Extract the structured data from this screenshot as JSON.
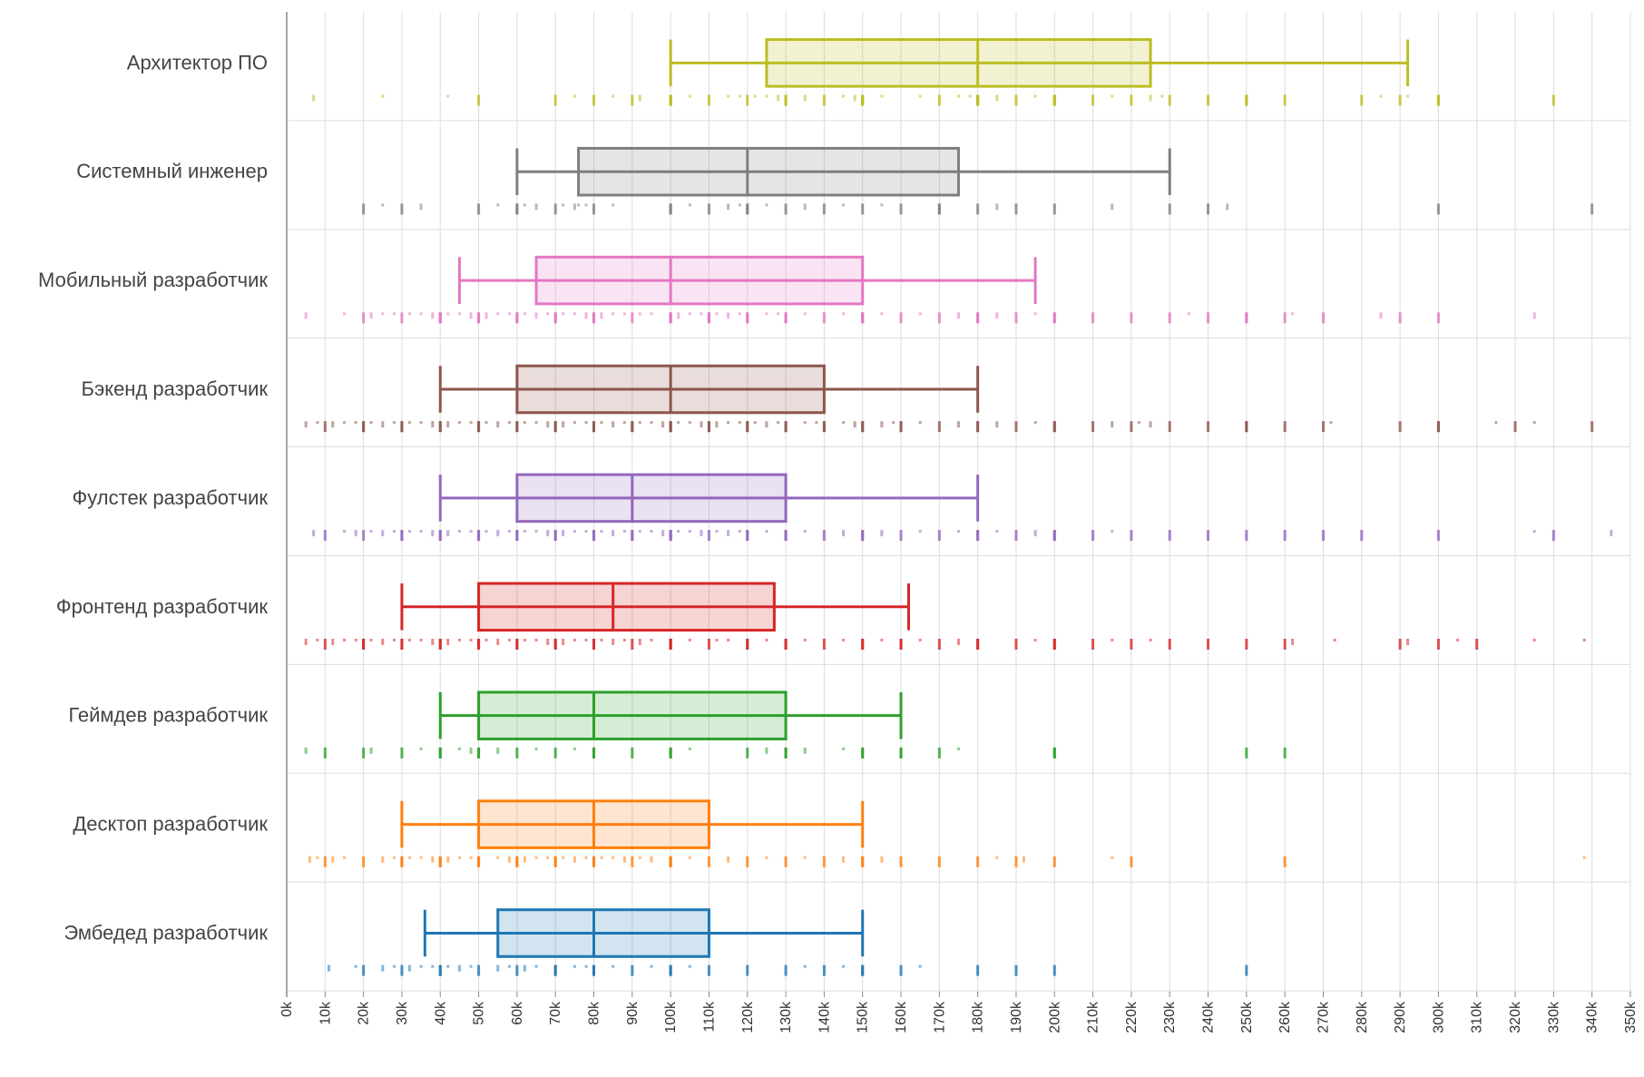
{
  "chart_data": {
    "type": "box",
    "orientation": "horizontal",
    "title": "",
    "xlabel": "",
    "ylabel": "",
    "xlim": [
      0,
      350
    ],
    "x_unit_suffix": "k",
    "x_ticks": [
      "0k",
      "10k",
      "20k",
      "30k",
      "40k",
      "50k",
      "60k",
      "70k",
      "80k",
      "90k",
      "100k",
      "110k",
      "120k",
      "130k",
      "140k",
      "150k",
      "160k",
      "170k",
      "180k",
      "190k",
      "200k",
      "210k",
      "220k",
      "230k",
      "240k",
      "250k",
      "260k",
      "270k",
      "280k",
      "290k",
      "300k",
      "310k",
      "320k",
      "330k",
      "340k",
      "350k"
    ],
    "grid": true,
    "series": [
      {
        "name": "Архитектор ПО",
        "color": "#bcbd22",
        "whisker_low": 100,
        "q1": 125,
        "median": 180,
        "q3": 225,
        "whisker_high": 292,
        "points": [
          7,
          25,
          42,
          50,
          70,
          75,
          80,
          85,
          90,
          92,
          100,
          100,
          100,
          100,
          105,
          110,
          115,
          118,
          120,
          122,
          125,
          128,
          130,
          130,
          135,
          140,
          145,
          148,
          150,
          150,
          150,
          155,
          165,
          170,
          175,
          178,
          180,
          180,
          180,
          185,
          190,
          195,
          200,
          200,
          200,
          210,
          215,
          220,
          225,
          228,
          230,
          240,
          250,
          250,
          260,
          280,
          285,
          290,
          292,
          300,
          300,
          330
        ]
      },
      {
        "name": "Системный инженер",
        "color": "#7f7f7f",
        "whisker_low": 60,
        "q1": 76,
        "median": 120,
        "q3": 175,
        "whisker_high": 230,
        "points": [
          20,
          25,
          30,
          35,
          50,
          55,
          60,
          60,
          62,
          65,
          70,
          72,
          75,
          76,
          78,
          80,
          85,
          100,
          100,
          105,
          110,
          115,
          118,
          120,
          120,
          125,
          130,
          135,
          140,
          145,
          150,
          155,
          160,
          170,
          170,
          180,
          185,
          190,
          200,
          215,
          230,
          240,
          245,
          300,
          340
        ]
      },
      {
        "name": "Мобильный разработчик",
        "color": "#e377c2",
        "whisker_low": 45,
        "q1": 65,
        "median": 100,
        "q3": 150,
        "whisker_high": 195,
        "points": [
          5,
          15,
          20,
          22,
          25,
          28,
          30,
          32,
          35,
          38,
          40,
          40,
          40,
          42,
          45,
          48,
          50,
          50,
          52,
          55,
          58,
          60,
          60,
          62,
          65,
          68,
          70,
          70,
          72,
          75,
          78,
          80,
          80,
          82,
          85,
          88,
          90,
          92,
          95,
          100,
          100,
          100,
          102,
          105,
          108,
          110,
          110,
          112,
          115,
          118,
          120,
          120,
          125,
          128,
          130,
          130,
          135,
          140,
          145,
          150,
          150,
          150,
          155,
          160,
          165,
          170,
          175,
          180,
          180,
          185,
          190,
          195,
          200,
          200,
          210,
          220,
          230,
          235,
          240,
          250,
          250,
          260,
          262,
          270,
          285,
          290,
          300,
          325
        ]
      },
      {
        "name": "Бэкенд разработчик",
        "color": "#8c564b",
        "whisker_low": 40,
        "q1": 60,
        "median": 100,
        "q3": 140,
        "whisker_high": 180,
        "points": [
          5,
          8,
          10,
          12,
          15,
          18,
          20,
          20,
          22,
          25,
          28,
          30,
          30,
          32,
          35,
          38,
          40,
          40,
          42,
          45,
          48,
          50,
          50,
          52,
          55,
          58,
          60,
          60,
          62,
          65,
          68,
          70,
          70,
          72,
          75,
          78,
          80,
          80,
          82,
          85,
          88,
          90,
          90,
          92,
          95,
          98,
          100,
          100,
          100,
          102,
          105,
          108,
          110,
          110,
          112,
          115,
          118,
          120,
          120,
          122,
          125,
          128,
          130,
          130,
          135,
          138,
          140,
          140,
          145,
          148,
          150,
          150,
          155,
          158,
          160,
          160,
          165,
          170,
          175,
          180,
          180,
          185,
          190,
          195,
          200,
          200,
          210,
          215,
          220,
          222,
          225,
          230,
          240,
          250,
          250,
          260,
          270,
          272,
          290,
          300,
          300,
          315,
          320,
          325,
          340
        ]
      },
      {
        "name": "Фулстек разработчик",
        "color": "#9467bd",
        "whisker_low": 40,
        "q1": 60,
        "median": 90,
        "q3": 130,
        "whisker_high": 180,
        "points": [
          7,
          10,
          15,
          18,
          20,
          22,
          25,
          28,
          30,
          30,
          32,
          35,
          38,
          40,
          40,
          42,
          45,
          48,
          50,
          50,
          52,
          55,
          58,
          60,
          60,
          62,
          65,
          68,
          70,
          70,
          72,
          75,
          78,
          80,
          80,
          82,
          85,
          88,
          90,
          90,
          92,
          95,
          98,
          100,
          100,
          100,
          102,
          105,
          108,
          110,
          112,
          115,
          118,
          120,
          120,
          125,
          130,
          130,
          135,
          140,
          145,
          150,
          150,
          155,
          160,
          165,
          170,
          175,
          180,
          180,
          185,
          190,
          195,
          200,
          200,
          210,
          215,
          220,
          230,
          240,
          250,
          260,
          270,
          280,
          300,
          325,
          330,
          345
        ]
      },
      {
        "name": "Фронтенд разработчик",
        "color": "#d62728",
        "whisker_low": 30,
        "q1": 50,
        "median": 85,
        "q3": 127,
        "whisker_high": 162,
        "points": [
          5,
          8,
          10,
          12,
          15,
          18,
          20,
          20,
          22,
          25,
          28,
          30,
          30,
          32,
          35,
          38,
          40,
          40,
          42,
          45,
          48,
          50,
          50,
          52,
          55,
          58,
          60,
          60,
          62,
          65,
          68,
          70,
          70,
          72,
          75,
          78,
          80,
          80,
          82,
          85,
          88,
          90,
          92,
          95,
          100,
          100,
          100,
          105,
          110,
          112,
          115,
          120,
          120,
          125,
          130,
          130,
          135,
          140,
          145,
          150,
          150,
          155,
          160,
          160,
          165,
          170,
          175,
          180,
          180,
          190,
          195,
          200,
          200,
          210,
          215,
          220,
          225,
          230,
          240,
          250,
          260,
          262,
          273,
          290,
          292,
          300,
          305,
          310,
          325,
          338
        ]
      },
      {
        "name": "Геймдев разработчик",
        "color": "#2ca02c",
        "whisker_low": 40,
        "q1": 50,
        "median": 80,
        "q3": 130,
        "whisker_high": 160,
        "points": [
          5,
          10,
          20,
          22,
          30,
          35,
          40,
          40,
          45,
          48,
          50,
          50,
          55,
          60,
          65,
          70,
          75,
          80,
          80,
          90,
          100,
          100,
          105,
          120,
          125,
          130,
          130,
          135,
          145,
          150,
          150,
          160,
          160,
          170,
          175,
          200,
          200,
          250,
          260
        ]
      },
      {
        "name": "Десктоп разработчик",
        "color": "#ff7f0e",
        "whisker_low": 30,
        "q1": 50,
        "median": 80,
        "q3": 110,
        "whisker_high": 150,
        "points": [
          6,
          8,
          10,
          12,
          15,
          20,
          25,
          28,
          30,
          30,
          32,
          35,
          38,
          40,
          40,
          42,
          45,
          48,
          50,
          50,
          55,
          58,
          60,
          60,
          62,
          65,
          68,
          70,
          70,
          72,
          75,
          78,
          80,
          80,
          82,
          85,
          88,
          90,
          92,
          95,
          100,
          100,
          100,
          105,
          110,
          115,
          120,
          125,
          130,
          135,
          140,
          145,
          150,
          150,
          155,
          160,
          170,
          180,
          185,
          190,
          192,
          200,
          215,
          220,
          260,
          338
        ]
      },
      {
        "name": "Эмбедед разработчик",
        "color": "#1f77b4",
        "whisker_low": 36,
        "q1": 55,
        "median": 80,
        "q3": 110,
        "whisker_high": 150,
        "points": [
          11,
          18,
          20,
          25,
          28,
          30,
          32,
          35,
          38,
          40,
          40,
          42,
          45,
          48,
          50,
          55,
          58,
          60,
          62,
          65,
          70,
          70,
          75,
          78,
          80,
          80,
          85,
          90,
          95,
          100,
          100,
          105,
          110,
          120,
          130,
          135,
          140,
          145,
          150,
          150,
          160,
          165,
          180,
          190,
          200,
          250
        ]
      }
    ]
  }
}
